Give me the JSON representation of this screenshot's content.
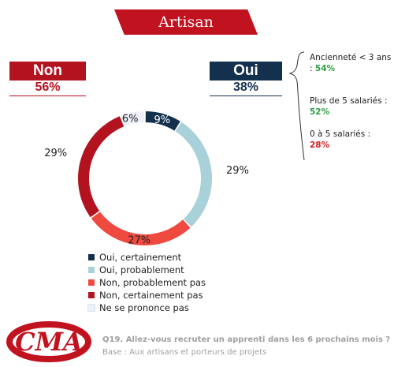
{
  "header": {
    "title": "Artisan"
  },
  "non": {
    "label": "Non",
    "pct": "56%"
  },
  "oui": {
    "label": "Oui",
    "pct": "38%"
  },
  "notes": [
    {
      "text": "Ancienneté < 3 ans : ",
      "value": "54%",
      "color": "#2e9f48"
    },
    {
      "text": "Plus de 5 salariés : ",
      "value": "52%",
      "color": "#2e9f48"
    },
    {
      "text": "0 à 5 salariés : ",
      "value": "28%",
      "color": "#d42027"
    }
  ],
  "footer": {
    "question": "Q19.  Allez-vous recruter un apprenti dans les 6 prochains mois ?",
    "base": "Base : Aux artisans et porteurs de projets"
  },
  "colors": {
    "brand_red": "#b3121f",
    "navy": "#13304f"
  },
  "logo_icon": "cma-logo",
  "chart_data": {
    "type": "pie",
    "donut": true,
    "categories": [
      "Oui, certainement",
      "Oui, probablement",
      "Non, probablement pas",
      "Non, certainement pas",
      "Ne se prononce pas"
    ],
    "values": [
      9,
      29,
      27,
      29,
      6
    ],
    "labels": [
      "9%",
      "29%",
      "27%",
      "29%",
      "6%"
    ],
    "colors": [
      "#13304f",
      "#a9d1da",
      "#ef4a40",
      "#b3121f",
      "#eef1f8"
    ],
    "legend_position": "bottom"
  }
}
